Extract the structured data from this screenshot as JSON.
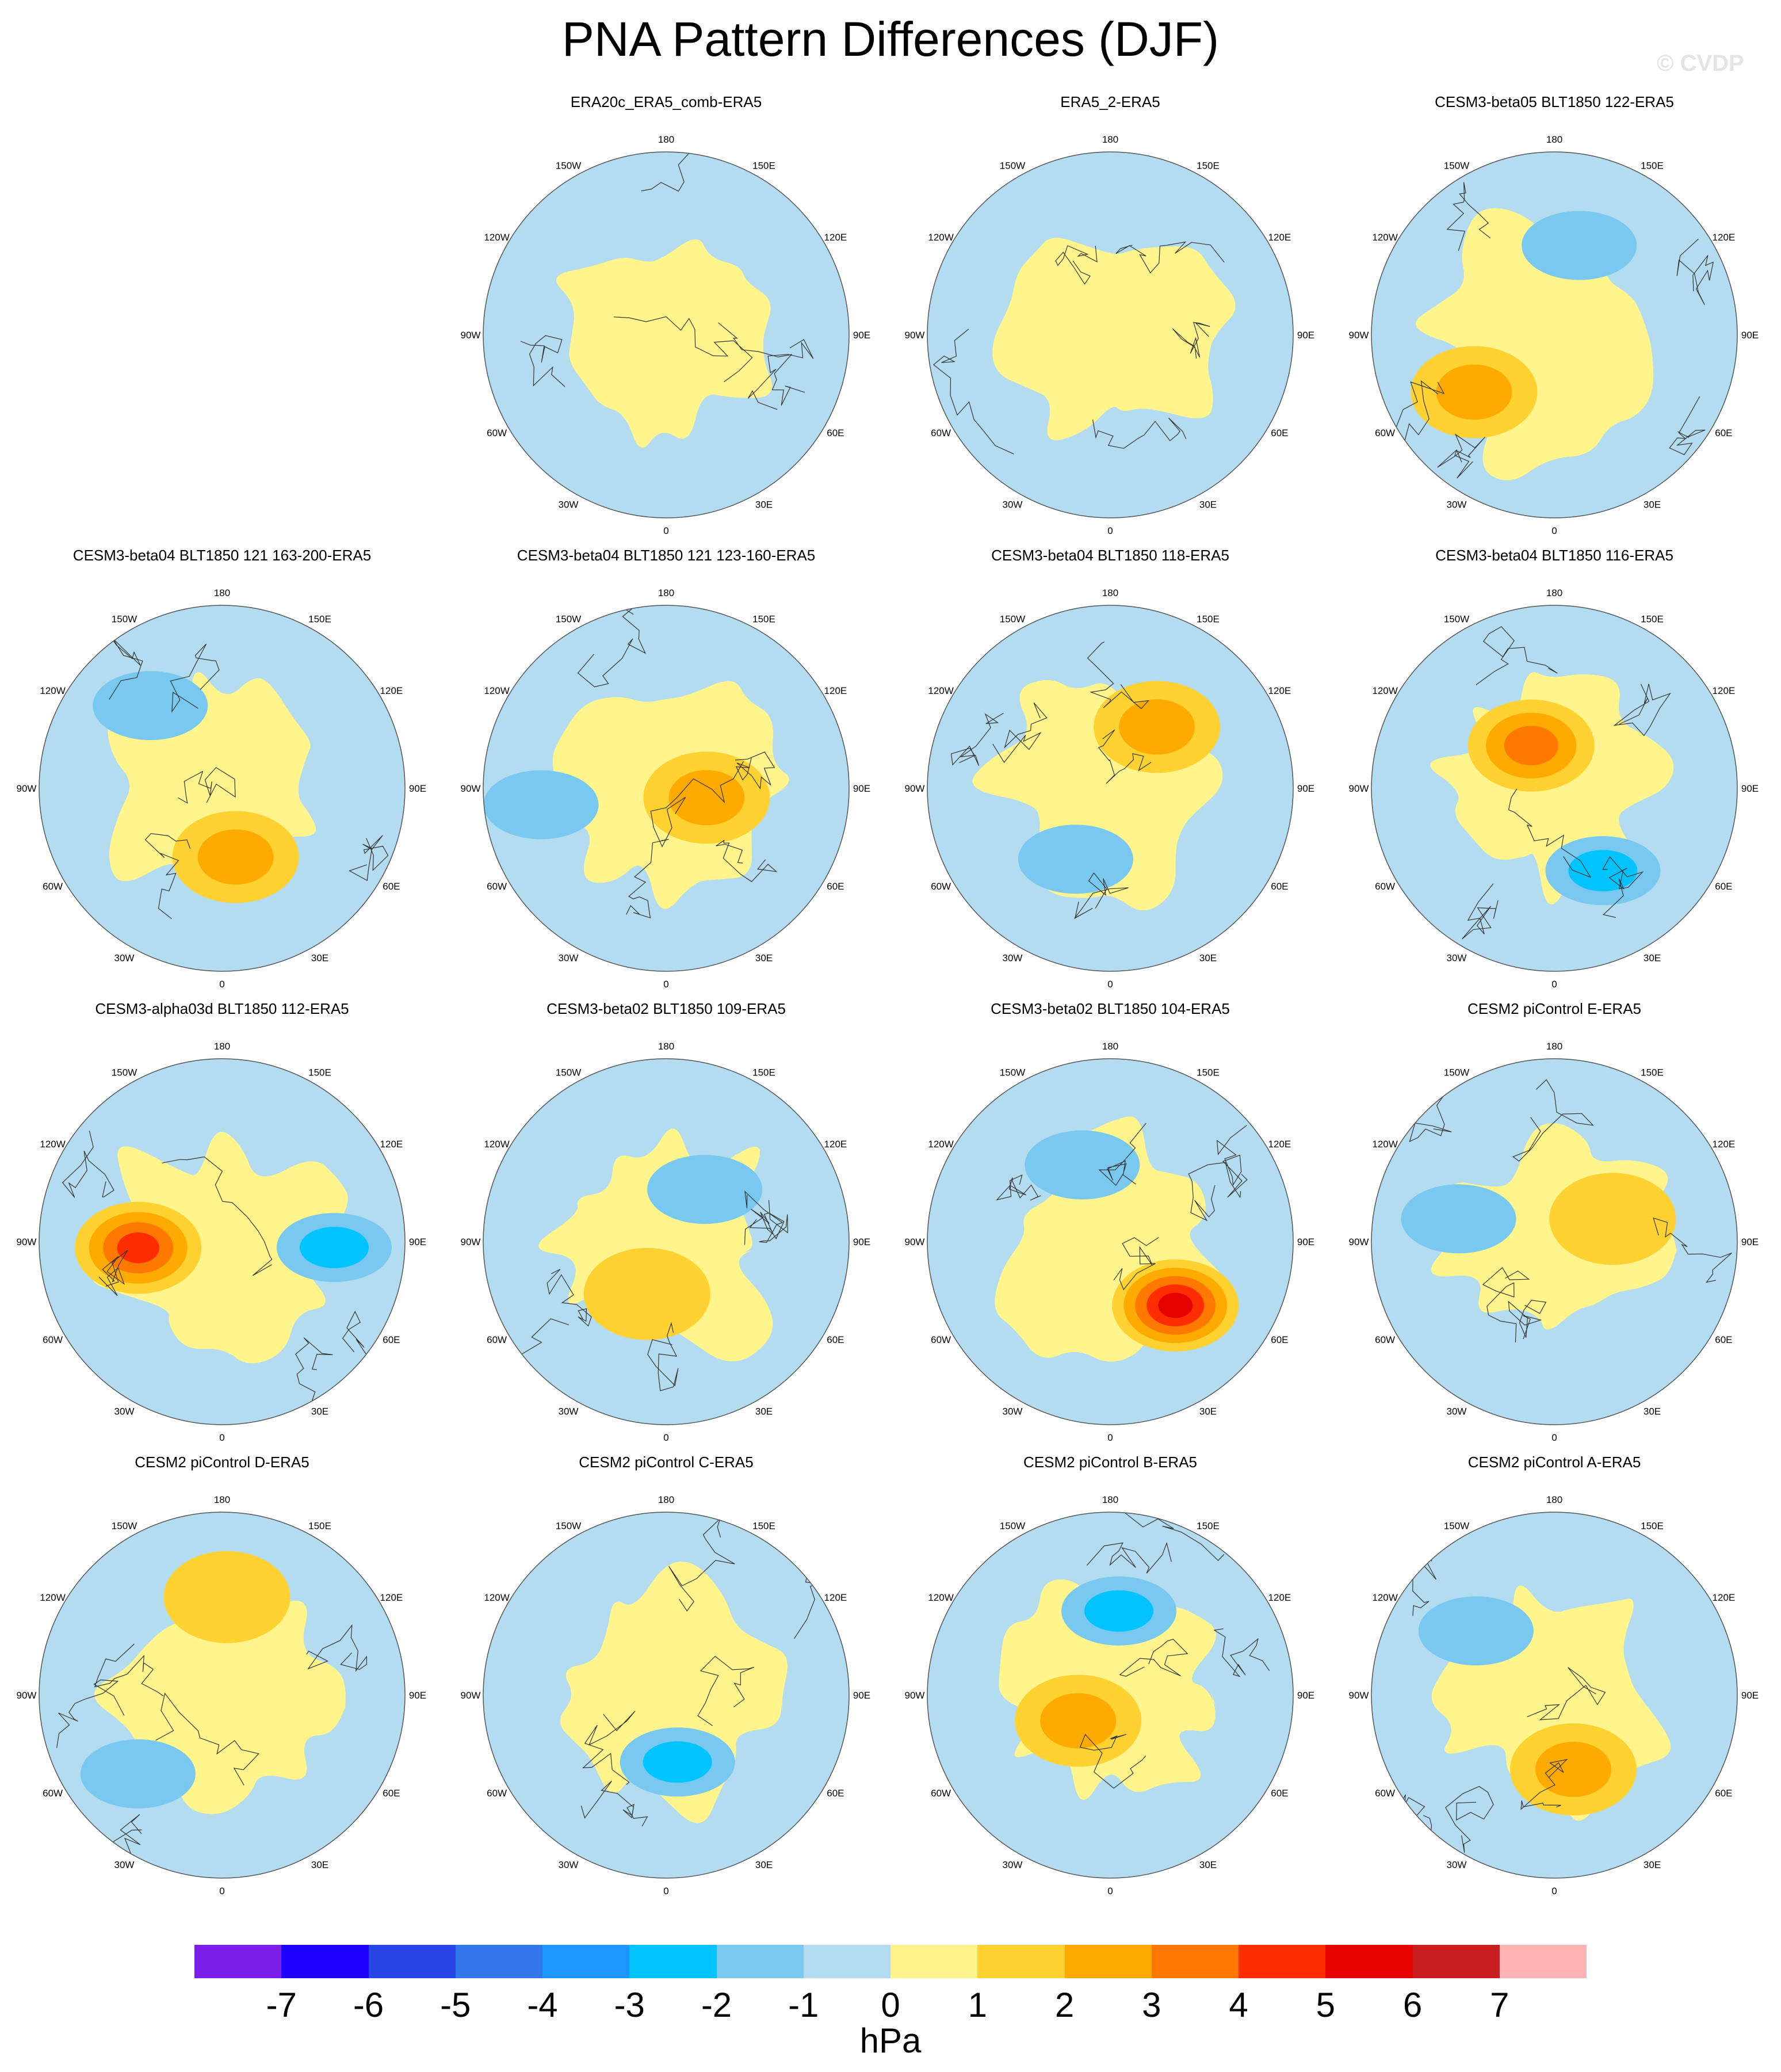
{
  "title": "PNA Pattern Differences (DJF)",
  "credit": "© CVDP",
  "colors": {
    "levels": [
      "#7b1ee8",
      "#1e00ff",
      "#2846e6",
      "#3278eb",
      "#1e96ff",
      "#00c3ff",
      "#78c8f0",
      "#b4dcf0",
      "#fff58c",
      "#ffd232",
      "#ffaa00",
      "#ff7800",
      "#ff2d00",
      "#e60000",
      "#c81e1e",
      "#ffb4b4"
    ],
    "map_outline": "#555555",
    "coast": "#333333"
  },
  "lon_labels": [
    "180",
    "150E",
    "120E",
    "90E",
    "60E",
    "30E",
    "0",
    "30W",
    "60W",
    "90W",
    "120W",
    "150W"
  ],
  "panels": [
    {
      "row": 0,
      "col": 1,
      "title": "ERA20c_ERA5_comb-ERA5",
      "positive_fraction": 0.4,
      "max_anomaly_hPa": 1.0,
      "min_anomaly_hPa": -0.5
    },
    {
      "row": 0,
      "col": 2,
      "title": "ERA5_2-ERA5",
      "positive_fraction": 0.45,
      "max_anomaly_hPa": 1.0,
      "min_anomaly_hPa": -0.5
    },
    {
      "row": 0,
      "col": 3,
      "title": "CESM3-beta05 BLT1850 122-ERA5",
      "positive_fraction": 0.55,
      "max_anomaly_hPa": 2.5,
      "min_anomaly_hPa": -1.5
    },
    {
      "row": 1,
      "col": 0,
      "title": "CESM3-beta04 BLT1850 121 163-200-ERA5",
      "positive_fraction": 0.45,
      "max_anomaly_hPa": 3.0,
      "min_anomaly_hPa": -2.0
    },
    {
      "row": 1,
      "col": 1,
      "title": "CESM3-beta04 BLT1850 121 123-160-ERA5",
      "positive_fraction": 0.45,
      "max_anomaly_hPa": 2.5,
      "min_anomaly_hPa": -1.5
    },
    {
      "row": 1,
      "col": 2,
      "title": "CESM3-beta04 BLT1850 118-ERA5",
      "positive_fraction": 0.45,
      "max_anomaly_hPa": 2.5,
      "min_anomaly_hPa": -1.5
    },
    {
      "row": 1,
      "col": 3,
      "title": "CESM3-beta04 BLT1850 116-ERA5",
      "positive_fraction": 0.4,
      "max_anomaly_hPa": 4.0,
      "min_anomaly_hPa": -3.0
    },
    {
      "row": 2,
      "col": 0,
      "title": "CESM3-alpha03d BLT1850 112-ERA5",
      "positive_fraction": 0.45,
      "max_anomaly_hPa": 5.0,
      "min_anomaly_hPa": -3.0
    },
    {
      "row": 2,
      "col": 1,
      "title": "CESM3-beta02 BLT1850 109-ERA5",
      "positive_fraction": 0.5,
      "max_anomaly_hPa": 2.0,
      "min_anomaly_hPa": -1.5
    },
    {
      "row": 2,
      "col": 2,
      "title": "CESM3-beta02 BLT1850 104-ERA5",
      "positive_fraction": 0.45,
      "max_anomaly_hPa": 5.5,
      "min_anomaly_hPa": -2.0
    },
    {
      "row": 2,
      "col": 3,
      "title": "CESM2 piControl E-ERA5",
      "positive_fraction": 0.4,
      "max_anomaly_hPa": 2.0,
      "min_anomaly_hPa": -2.0
    },
    {
      "row": 3,
      "col": 0,
      "title": "CESM2 piControl D-ERA5",
      "positive_fraction": 0.4,
      "max_anomaly_hPa": 2.0,
      "min_anomaly_hPa": -2.0
    },
    {
      "row": 3,
      "col": 1,
      "title": "CESM2 piControl C-ERA5",
      "positive_fraction": 0.45,
      "max_anomaly_hPa": 1.0,
      "min_anomaly_hPa": -2.5
    },
    {
      "row": 3,
      "col": 2,
      "title": "CESM2 piControl B-ERA5",
      "positive_fraction": 0.45,
      "max_anomaly_hPa": 2.5,
      "min_anomaly_hPa": -2.5
    },
    {
      "row": 3,
      "col": 3,
      "title": "CESM2 piControl A-ERA5",
      "positive_fraction": 0.4,
      "max_anomaly_hPa": 2.5,
      "min_anomaly_hPa": -2.0
    }
  ],
  "colorbar": {
    "ticks": [
      "-7",
      "-6",
      "-5",
      "-4",
      "-3",
      "-2",
      "-1",
      "0",
      "1",
      "2",
      "3",
      "4",
      "5",
      "6",
      "7"
    ],
    "unit": "hPa"
  }
}
